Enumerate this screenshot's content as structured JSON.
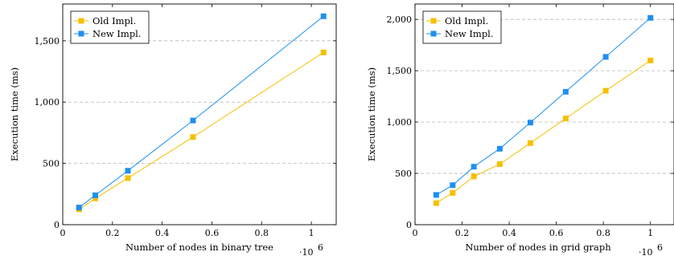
{
  "colors": {
    "old": "#f5c000",
    "new": "#1f8fef",
    "grid": "#b8b8b8"
  },
  "chart_data": [
    {
      "type": "line",
      "xlabel": "Number of nodes in binary tree",
      "ylabel": "Execution time (ms)",
      "x_multiplier": "·10",
      "x_multiplier_exp": "6",
      "xlim": [
        0,
        1.1
      ],
      "ylim": [
        0,
        1800
      ],
      "xticks": [
        0,
        0.2,
        0.4,
        0.6,
        0.8,
        1
      ],
      "xtick_labels": [
        "0",
        "0.2",
        "0.4",
        "0.6",
        "0.8",
        "1"
      ],
      "yticks": [
        0,
        500,
        1000,
        1500
      ],
      "ytick_labels": [
        "0",
        "500",
        "1,000",
        "1,500"
      ],
      "grid": "horizontal-dashed",
      "legend_position": "top-left",
      "series": [
        {
          "name": "Old Impl.",
          "x": [
            0.0655,
            0.131,
            0.262,
            0.524,
            1.049
          ],
          "y": [
            125,
            215,
            380,
            715,
            1405
          ]
        },
        {
          "name": "New Impl.",
          "x": [
            0.0655,
            0.131,
            0.262,
            0.524,
            1.049
          ],
          "y": [
            140,
            240,
            440,
            850,
            1700
          ]
        }
      ]
    },
    {
      "type": "line",
      "xlabel": "Number of nodes in grid graph",
      "ylabel": "Execution time (ms)",
      "x_multiplier": "·10",
      "x_multiplier_exp": "6",
      "xlim": [
        0,
        1.1
      ],
      "ylim": [
        0,
        2150
      ],
      "xticks": [
        0,
        0.2,
        0.4,
        0.6,
        0.8,
        1
      ],
      "xtick_labels": [
        "0",
        "0.2",
        "0.4",
        "0.6",
        "0.8",
        "1"
      ],
      "yticks": [
        0,
        500,
        1000,
        1500,
        2000
      ],
      "ytick_labels": [
        "0",
        "500",
        "1,000",
        "1,500",
        "2,000"
      ],
      "grid": "horizontal-dashed",
      "legend_position": "top-left",
      "series": [
        {
          "name": "Old Impl.",
          "x": [
            0.09,
            0.16,
            0.25,
            0.36,
            0.49,
            0.64,
            0.81,
            1.0
          ],
          "y": [
            210,
            310,
            470,
            590,
            795,
            1035,
            1305,
            1600
          ]
        },
        {
          "name": "New Impl.",
          "x": [
            0.09,
            0.16,
            0.25,
            0.36,
            0.49,
            0.64,
            0.81,
            1.0
          ],
          "y": [
            290,
            385,
            565,
            740,
            995,
            1295,
            1635,
            2015
          ]
        }
      ]
    }
  ]
}
